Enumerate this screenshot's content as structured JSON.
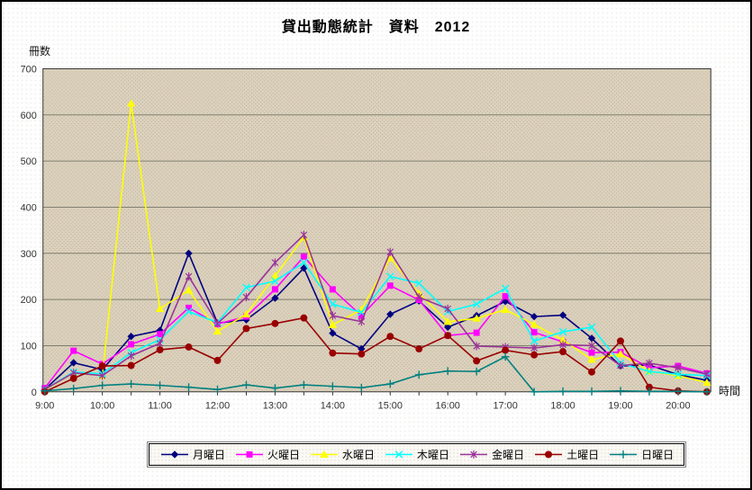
{
  "title": "貸出動態統計　資料　2012",
  "y_axis": {
    "label": "冊数",
    "ticks": [
      0,
      100,
      200,
      300,
      400,
      500,
      600,
      700
    ],
    "max": 700
  },
  "x_axis": {
    "label": "時間",
    "tick_labels": [
      "9:00",
      "10:00",
      "11:00",
      "12:00",
      "13:00",
      "14:00",
      "15:00",
      "16:00",
      "17:00",
      "18:00",
      "19:00",
      "20:00"
    ]
  },
  "legend": [
    {
      "id": "monday",
      "label": "月曜日",
      "color": "#000080",
      "marker": "diamond"
    },
    {
      "id": "tuesday",
      "label": "火曜日",
      "color": "#ff00ff",
      "marker": "square"
    },
    {
      "id": "wednesday",
      "label": "水曜日",
      "color": "#ffff00",
      "marker": "triangle"
    },
    {
      "id": "thursday",
      "label": "木曜日",
      "color": "#00ffff",
      "marker": "xmark"
    },
    {
      "id": "friday",
      "label": "金曜日",
      "color": "#993399",
      "marker": "star"
    },
    {
      "id": "saturday",
      "label": "土曜日",
      "color": "#990000",
      "marker": "circle"
    },
    {
      "id": "sunday",
      "label": "日曜日",
      "color": "#008080",
      "marker": "plus"
    }
  ],
  "chart_data": {
    "type": "line",
    "title": "貸出動態統計　資料　2012",
    "xlabel": "時間",
    "ylabel": "冊数",
    "ylim": [
      0,
      700
    ],
    "ytick_step": 100,
    "grid": true,
    "legend_position": "bottom",
    "plot_background": "#dbd1bd",
    "categories": [
      "9:00",
      "9:30",
      "10:00",
      "10:30",
      "11:00",
      "11:30",
      "12:00",
      "12:30",
      "13:00",
      "13:30",
      "14:00",
      "14:30",
      "15:00",
      "15:30",
      "16:00",
      "16:30",
      "17:00",
      "17:30",
      "18:00",
      "18:30",
      "19:00",
      "19:30",
      "20:00",
      "20:30"
    ],
    "series": [
      {
        "id": "monday",
        "name": "月曜日",
        "color": "#000080",
        "marker": "diamond",
        "values": [
          5,
          63,
          48,
          120,
          133,
          300,
          149,
          156,
          203,
          268,
          127,
          93,
          168,
          197,
          140,
          165,
          196,
          163,
          166,
          116,
          56,
          58,
          37,
          25
        ]
      },
      {
        "id": "tuesday",
        "name": "火曜日",
        "color": "#ff00ff",
        "marker": "square",
        "values": [
          8,
          89,
          60,
          103,
          125,
          182,
          147,
          163,
          222,
          293,
          222,
          165,
          230,
          199,
          122,
          128,
          207,
          129,
          108,
          85,
          86,
          52,
          56,
          40
        ]
      },
      {
        "id": "wednesday",
        "name": "水曜日",
        "color": "#ffff00",
        "marker": "triangle",
        "values": [
          4,
          41,
          35,
          625,
          180,
          220,
          131,
          168,
          251,
          335,
          145,
          178,
          290,
          213,
          152,
          159,
          178,
          146,
          112,
          70,
          82,
          45,
          35,
          20
        ]
      },
      {
        "id": "thursday",
        "name": "木曜日",
        "color": "#00ffff",
        "marker": "xmark",
        "values": [
          5,
          43,
          39,
          85,
          113,
          174,
          150,
          226,
          240,
          280,
          190,
          172,
          250,
          235,
          174,
          190,
          224,
          110,
          130,
          140,
          62,
          44,
          38,
          35
        ]
      },
      {
        "id": "friday",
        "name": "金曜日",
        "color": "#993399",
        "marker": "star",
        "values": [
          5,
          41,
          35,
          78,
          105,
          250,
          148,
          205,
          280,
          340,
          165,
          152,
          303,
          205,
          180,
          99,
          97,
          95,
          102,
          100,
          57,
          62,
          52,
          38
        ]
      },
      {
        "id": "saturday",
        "name": "土曜日",
        "color": "#990000",
        "marker": "circle",
        "values": [
          0,
          29,
          56,
          57,
          91,
          97,
          68,
          137,
          148,
          160,
          84,
          82,
          120,
          93,
          122,
          67,
          90,
          80,
          87,
          43,
          110,
          10,
          2,
          0
        ]
      },
      {
        "id": "sunday",
        "name": "日曜日",
        "color": "#008080",
        "marker": "plus",
        "values": [
          2,
          7,
          14,
          17,
          14,
          10,
          5,
          15,
          8,
          15,
          12,
          9,
          17,
          37,
          45,
          44,
          76,
          0,
          1,
          1,
          2,
          1,
          1,
          0
        ]
      }
    ]
  }
}
